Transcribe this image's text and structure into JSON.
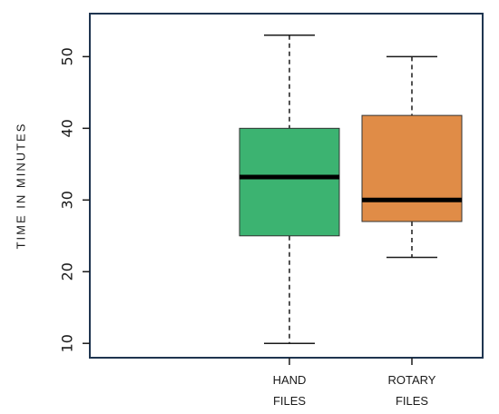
{
  "chart_data": {
    "type": "boxplot",
    "title": "",
    "xlabel": "",
    "ylabel": "TIME IN MINUTES",
    "ylim": [
      8,
      56
    ],
    "yticks": [
      10,
      20,
      30,
      40,
      50
    ],
    "categories": [
      {
        "line1": "HAND",
        "line2": "FILES"
      },
      {
        "line1": "ROTARY",
        "line2": "FILES"
      }
    ],
    "boxes": [
      {
        "min": 10,
        "q1": 25,
        "median": 33.2,
        "q3": 40,
        "max": 53,
        "color": "#3cb371"
      },
      {
        "min": 22,
        "q1": 27,
        "median": 30,
        "q3": 41.8,
        "max": 50,
        "color": "#e08c47"
      }
    ],
    "grid": false,
    "legend": "none"
  }
}
